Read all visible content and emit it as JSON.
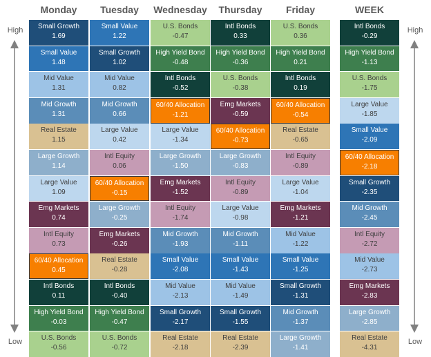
{
  "labels": {
    "high": "High",
    "low": "Low"
  },
  "colors": {
    "Small Growth": {
      "bg": "#1F4E79",
      "fg": "#ffffff"
    },
    "Small Value": {
      "bg": "#2E75B6",
      "fg": "#ffffff"
    },
    "Mid Value": {
      "bg": "#9DC3E6",
      "fg": "#404040"
    },
    "Mid Growth": {
      "bg": "#5B8DB8",
      "fg": "#ffffff"
    },
    "Real Estate": {
      "bg": "#D9C192",
      "fg": "#404040"
    },
    "Large Growth": {
      "bg": "#8EAFCB",
      "fg": "#ffffff"
    },
    "Large Value": {
      "bg": "#BDD7EE",
      "fg": "#404040"
    },
    "Emg Markets": {
      "bg": "#6B3551",
      "fg": "#ffffff"
    },
    "Intl Equity": {
      "bg": "#C59BB4",
      "fg": "#404040"
    },
    "60/40 Allocation": {
      "bg": "#F77F00",
      "fg": "#ffffff"
    },
    "Intl Bonds": {
      "bg": "#11403A",
      "fg": "#ffffff"
    },
    "High Yield Bond": {
      "bg": "#3E7F4E",
      "fg": "#ffffff"
    },
    "U.S. Bonds": {
      "bg": "#A9D18E",
      "fg": "#404040"
    }
  },
  "chart_data": {
    "type": "table",
    "columns": [
      {
        "day": "Monday",
        "items": [
          {
            "name": "Small Growth",
            "value": "1.69"
          },
          {
            "name": "Small Value",
            "value": "1.48"
          },
          {
            "name": "Mid Value",
            "value": "1.31"
          },
          {
            "name": "Mid Growth",
            "value": "1.31"
          },
          {
            "name": "Real Estate",
            "value": "1.15"
          },
          {
            "name": "Large Growth",
            "value": "1.14"
          },
          {
            "name": "Large Value",
            "value": "1.09"
          },
          {
            "name": "Emg Markets",
            "value": "0.74"
          },
          {
            "name": "Intl Equity",
            "value": "0.73"
          },
          {
            "name": "60/40 Allocation",
            "value": "0.45"
          },
          {
            "name": "Intl Bonds",
            "value": "0.11"
          },
          {
            "name": "High Yield Bond",
            "value": "-0.03"
          },
          {
            "name": "U.S. Bonds",
            "value": "-0.56"
          }
        ]
      },
      {
        "day": "Tuesday",
        "items": [
          {
            "name": "Small Value",
            "value": "1.22"
          },
          {
            "name": "Small Growth",
            "value": "1.02"
          },
          {
            "name": "Mid Value",
            "value": "0.82"
          },
          {
            "name": "Mid Growth",
            "value": "0.66"
          },
          {
            "name": "Large Value",
            "value": "0.42"
          },
          {
            "name": "Intl Equity",
            "value": "0.06"
          },
          {
            "name": "60/40 Allocation",
            "value": "-0.15"
          },
          {
            "name": "Large Growth",
            "value": "-0.25"
          },
          {
            "name": "Emg Markets",
            "value": "-0.26"
          },
          {
            "name": "Real Estate",
            "value": "-0.28"
          },
          {
            "name": "Intl Bonds",
            "value": "-0.40"
          },
          {
            "name": "High Yield Bond",
            "value": "-0.47"
          },
          {
            "name": "U.S. Bonds",
            "value": "-0.72"
          }
        ]
      },
      {
        "day": "Wednesday",
        "items": [
          {
            "name": "U.S. Bonds",
            "value": "-0.47"
          },
          {
            "name": "High Yield Bond",
            "value": "-0.48"
          },
          {
            "name": "Intl Bonds",
            "value": "-0.52"
          },
          {
            "name": "60/40 Allocation",
            "value": "-1.21"
          },
          {
            "name": "Large Value",
            "value": "-1.34"
          },
          {
            "name": "Large Growth",
            "value": "-1.50"
          },
          {
            "name": "Emg Markets",
            "value": "-1.52"
          },
          {
            "name": "Intl Equity",
            "value": "-1.74"
          },
          {
            "name": "Mid Growth",
            "value": "-1.93"
          },
          {
            "name": "Small Value",
            "value": "-2.08"
          },
          {
            "name": "Mid Value",
            "value": "-2.13"
          },
          {
            "name": "Small Growth",
            "value": "-2.17"
          },
          {
            "name": "Real Estate",
            "value": "-2.18"
          }
        ]
      },
      {
        "day": "Thursday",
        "items": [
          {
            "name": "Intl Bonds",
            "value": "0.33"
          },
          {
            "name": "High Yield Bond",
            "value": "-0.36"
          },
          {
            "name": "U.S. Bonds",
            "value": "-0.38"
          },
          {
            "name": "Emg Markets",
            "value": "-0.59"
          },
          {
            "name": "60/40 Allocation",
            "value": "-0.73"
          },
          {
            "name": "Large Growth",
            "value": "-0.83"
          },
          {
            "name": "Intl Equity",
            "value": "-0.89"
          },
          {
            "name": "Large Value",
            "value": "-0.98"
          },
          {
            "name": "Mid Growth",
            "value": "-1.11"
          },
          {
            "name": "Small Value",
            "value": "-1.43"
          },
          {
            "name": "Mid Value",
            "value": "-1.49"
          },
          {
            "name": "Small Growth",
            "value": "-1.55"
          },
          {
            "name": "Real Estate",
            "value": "-2.39"
          }
        ]
      },
      {
        "day": "Friday",
        "items": [
          {
            "name": "U.S. Bonds",
            "value": "0.36"
          },
          {
            "name": "High Yield Bond",
            "value": "0.21"
          },
          {
            "name": "Intl Bonds",
            "value": "0.19"
          },
          {
            "name": "60/40 Allocation",
            "value": "-0.54"
          },
          {
            "name": "Real Estate",
            "value": "-0.65"
          },
          {
            "name": "Intl Equity",
            "value": "-0.89"
          },
          {
            "name": "Large Value",
            "value": "-1.04"
          },
          {
            "name": "Emg Markets",
            "value": "-1.21"
          },
          {
            "name": "Mid Value",
            "value": "-1.22"
          },
          {
            "name": "Small Value",
            "value": "-1.25"
          },
          {
            "name": "Small Growth",
            "value": "-1.31"
          },
          {
            "name": "Mid Growth",
            "value": "-1.37"
          },
          {
            "name": "Large Growth",
            "value": "-1.41"
          }
        ]
      },
      {
        "day": "WEEK",
        "items": [
          {
            "name": "Intl Bonds",
            "value": "-0.29"
          },
          {
            "name": "High Yield Bond",
            "value": "-1.13"
          },
          {
            "name": "U.S. Bonds",
            "value": "-1.75"
          },
          {
            "name": "Large Value",
            "value": "-1.85"
          },
          {
            "name": "Small Value",
            "value": "-2.09"
          },
          {
            "name": "60/40 Allocation",
            "value": "-2.18"
          },
          {
            "name": "Small Growth",
            "value": "-2.35"
          },
          {
            "name": "Mid Growth",
            "value": "-2.45"
          },
          {
            "name": "Intl Equity",
            "value": "-2.72"
          },
          {
            "name": "Mid Value",
            "value": "-2.73"
          },
          {
            "name": "Emg Markets",
            "value": "-2.83"
          },
          {
            "name": "Large Growth",
            "value": "-2.85"
          },
          {
            "name": "Real Estate",
            "value": "-4.31"
          }
        ]
      }
    ]
  }
}
